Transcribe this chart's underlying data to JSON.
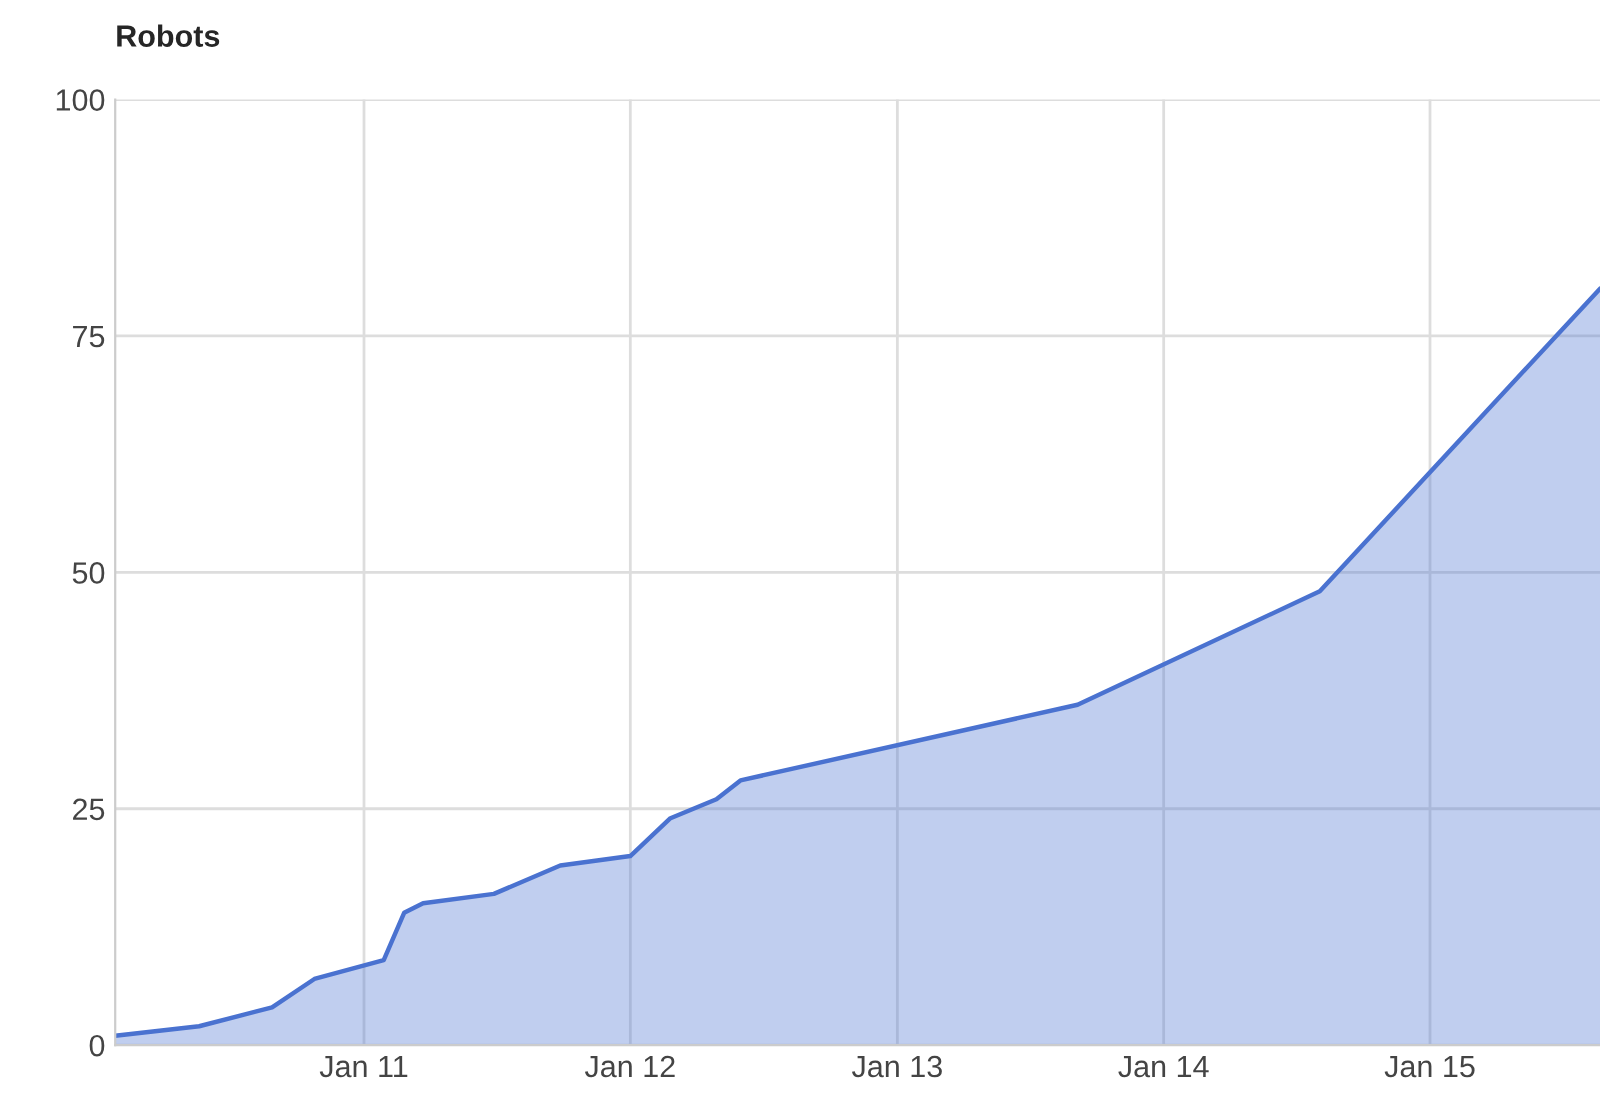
{
  "chart_data": {
    "type": "area",
    "title": "Robots",
    "x": [
      "2010-01-25",
      "2010-05-20",
      "2010-08-28",
      "2010-10-25",
      "2011-01-28",
      "2011-02-25",
      "2011-03-23",
      "2011-06-28",
      "2011-09-27",
      "2012-01-01",
      "2012-02-25",
      "2012-04-28",
      "2012-05-31",
      "2013-09-05",
      "2014-08-03",
      "2015-08-22"
    ],
    "series": [
      {
        "color": "#4a72d0",
        "values": [
          1,
          2,
          4,
          7,
          9,
          14,
          15,
          16,
          19,
          20,
          24,
          26,
          28,
          36,
          48,
          80
        ]
      }
    ],
    "xlim": [
      "2010-01-25",
      "2015-08-22"
    ],
    "xticks": [
      {
        "value": "2011-01-01",
        "label": "Jan 11"
      },
      {
        "value": "2012-01-01",
        "label": "Jan 12"
      },
      {
        "value": "2013-01-01",
        "label": "Jan 13"
      },
      {
        "value": "2014-01-01",
        "label": "Jan 14"
      },
      {
        "value": "2015-01-01",
        "label": "Jan 15"
      }
    ],
    "ylim": [
      0,
      100
    ],
    "yticks": [
      0,
      25,
      50,
      75,
      100
    ],
    "grid": true
  }
}
